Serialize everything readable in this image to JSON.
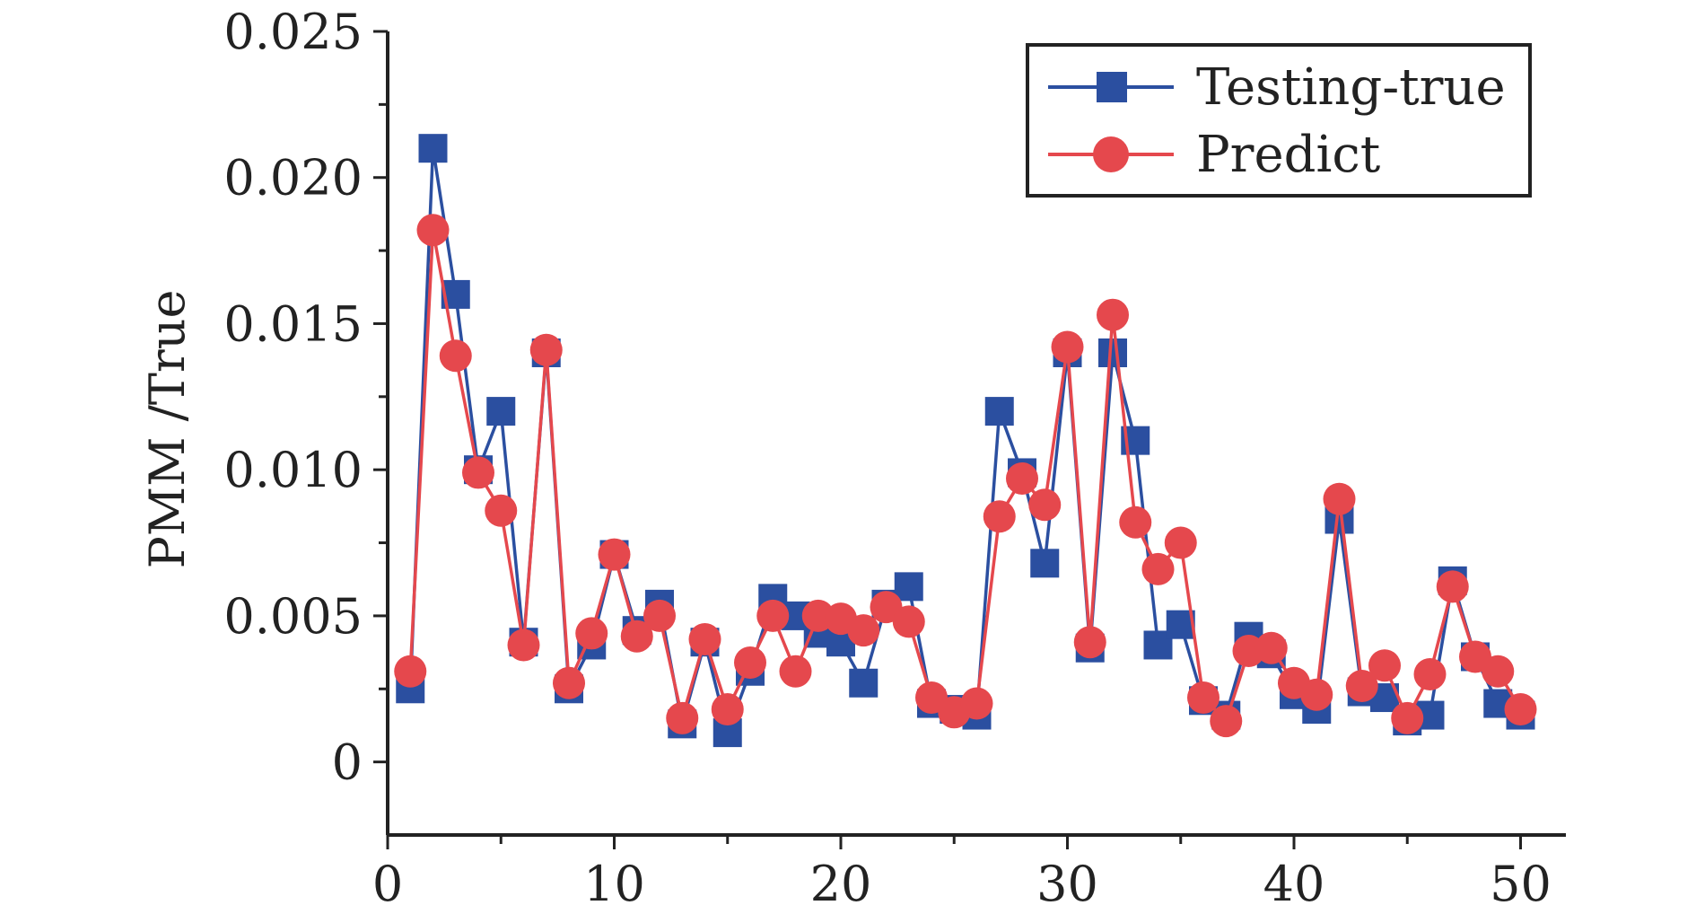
{
  "chart_data": {
    "type": "line",
    "title": "",
    "xlabel": "",
    "ylabel": "PMM /True",
    "xlim": [
      0,
      52
    ],
    "ylim": [
      -0.0025,
      0.025
    ],
    "xticks": [
      0,
      10,
      20,
      30,
      40,
      50
    ],
    "xtick_labels": [
      "0",
      "10",
      "20",
      "30",
      "40",
      "50"
    ],
    "yticks": [
      0,
      0.005,
      0.01,
      0.015,
      0.02,
      0.025
    ],
    "ytick_labels": [
      "0",
      "0.005",
      "0.010",
      "0.015",
      "0.020",
      "0.025"
    ],
    "grid": false,
    "legend_position": "top-right",
    "x": [
      1,
      2,
      3,
      4,
      5,
      6,
      7,
      8,
      9,
      10,
      11,
      12,
      13,
      14,
      15,
      16,
      17,
      18,
      19,
      20,
      21,
      22,
      23,
      24,
      25,
      26,
      27,
      28,
      29,
      30,
      31,
      32,
      33,
      34,
      35,
      36,
      37,
      38,
      39,
      40,
      41,
      42,
      43,
      44,
      45,
      46,
      47,
      48,
      49,
      50
    ],
    "series": [
      {
        "name": "Testing-true",
        "color": "#2b4fa0",
        "marker": "square",
        "values": [
          0.0025,
          0.021,
          0.016,
          0.01,
          0.012,
          0.0041,
          0.014,
          0.0025,
          0.004,
          0.0071,
          0.0045,
          0.0054,
          0.0013,
          0.0041,
          0.001,
          0.0031,
          0.0056,
          0.005,
          0.0044,
          0.0041,
          0.0027,
          0.0054,
          0.006,
          0.002,
          0.0018,
          0.0016,
          0.012,
          0.0099,
          0.0068,
          0.014,
          0.0039,
          0.014,
          0.011,
          0.004,
          0.0047,
          0.0021,
          0.0016,
          0.0043,
          0.0037,
          0.0023,
          0.0018,
          0.0083,
          0.0024,
          0.0022,
          0.0014,
          0.0016,
          0.0062,
          0.0036,
          0.002,
          0.0016
        ]
      },
      {
        "name": "Predict",
        "color": "#e5484d",
        "marker": "circle",
        "values": [
          0.0031,
          0.0182,
          0.0139,
          0.0099,
          0.0086,
          0.004,
          0.0141,
          0.0027,
          0.0044,
          0.0071,
          0.0043,
          0.005,
          0.0015,
          0.0042,
          0.0018,
          0.0034,
          0.005,
          0.0031,
          0.005,
          0.0049,
          0.0045,
          0.0053,
          0.0048,
          0.0022,
          0.0017,
          0.002,
          0.0084,
          0.0097,
          0.0088,
          0.0142,
          0.0041,
          0.0153,
          0.0082,
          0.0066,
          0.0075,
          0.0022,
          0.0014,
          0.0038,
          0.0039,
          0.0027,
          0.0023,
          0.009,
          0.0026,
          0.0033,
          0.0015,
          0.003,
          0.006,
          0.0036,
          0.0031,
          0.0018
        ]
      }
    ]
  }
}
